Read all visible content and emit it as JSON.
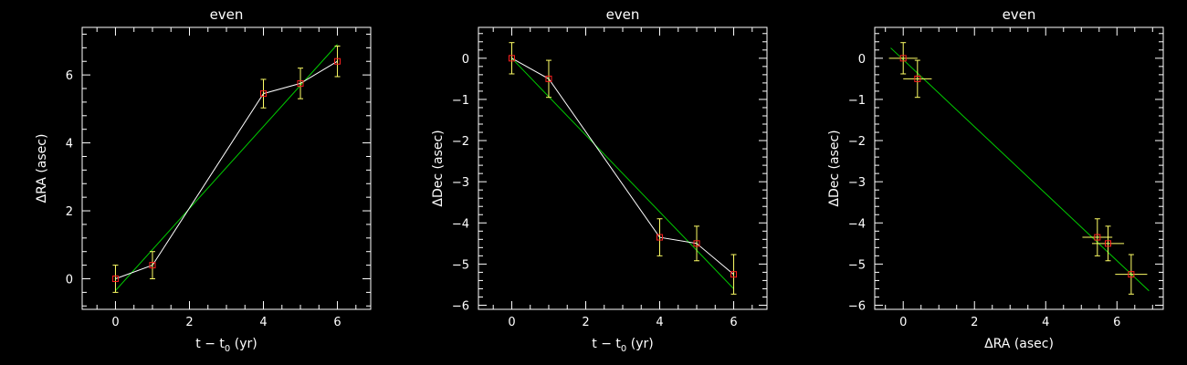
{
  "colors": {
    "background": "#000000",
    "axes": "#ffffff",
    "data_line": "#ffffff",
    "fit_line": "#00cc00",
    "error_bars": "#ffff66",
    "markers": "#ff2020"
  },
  "chart_data": [
    {
      "type": "line",
      "title": "even",
      "xlabel": "t − t",
      "xlabel_sub": "0",
      "xlabel_unit": " (yr)",
      "ylabel": "ΔRA (asec)",
      "xlim": [
        -0.9,
        6.9
      ],
      "ylim": [
        -0.9,
        7.4
      ],
      "xticks": [
        0,
        2,
        4,
        6
      ],
      "yticks": [
        0,
        2,
        4,
        6
      ],
      "grid": false,
      "series": [
        {
          "x": [
            0,
            1,
            4,
            5,
            6
          ],
          "y": [
            0.0,
            0.4,
            5.45,
            5.75,
            6.4
          ],
          "yerr": [
            0.4,
            0.4,
            0.42,
            0.45,
            0.45
          ],
          "xerr": [
            0,
            0,
            0,
            0,
            0
          ]
        }
      ],
      "fit": {
        "x": [
          0,
          6
        ],
        "y": [
          -0.35,
          6.9
        ]
      }
    },
    {
      "type": "line",
      "title": "even",
      "xlabel": "t − t",
      "xlabel_sub": "0",
      "xlabel_unit": " (yr)",
      "ylabel": "ΔDec (asec)",
      "xlim": [
        -0.9,
        6.9
      ],
      "ylim": [
        -6.1,
        0.75
      ],
      "xticks": [
        0,
        2,
        4,
        6
      ],
      "yticks": [
        -6,
        -5,
        -4,
        -3,
        -2,
        -1,
        0
      ],
      "grid": false,
      "series": [
        {
          "x": [
            0,
            1,
            4,
            5,
            6
          ],
          "y": [
            0.0,
            -0.5,
            -4.35,
            -4.5,
            -5.25
          ],
          "yerr": [
            0.38,
            0.45,
            0.45,
            0.42,
            0.48
          ],
          "xerr": [
            0,
            0,
            0,
            0,
            0
          ]
        }
      ],
      "fit": {
        "x": [
          0,
          6
        ],
        "y": [
          0.0,
          -5.6
        ]
      }
    },
    {
      "type": "scatter",
      "title": "even",
      "xlabel": "ΔRA (asec)",
      "xlabel_sub": "",
      "xlabel_unit": "",
      "ylabel": "ΔDec (asec)",
      "xlim": [
        -0.8,
        7.3
      ],
      "ylim": [
        -6.1,
        0.75
      ],
      "xticks": [
        0,
        2,
        4,
        6
      ],
      "yticks": [
        -6,
        -5,
        -4,
        -3,
        -2,
        -1,
        0
      ],
      "grid": false,
      "series": [
        {
          "x": [
            0.0,
            0.4,
            5.45,
            5.75,
            6.4
          ],
          "y": [
            0.0,
            -0.5,
            -4.35,
            -4.5,
            -5.25
          ],
          "yerr": [
            0.38,
            0.45,
            0.45,
            0.42,
            0.48
          ],
          "xerr": [
            0.4,
            0.4,
            0.42,
            0.45,
            0.45
          ]
        }
      ],
      "fit": {
        "x": [
          -0.35,
          6.9
        ],
        "y": [
          0.25,
          -5.65
        ]
      }
    }
  ]
}
